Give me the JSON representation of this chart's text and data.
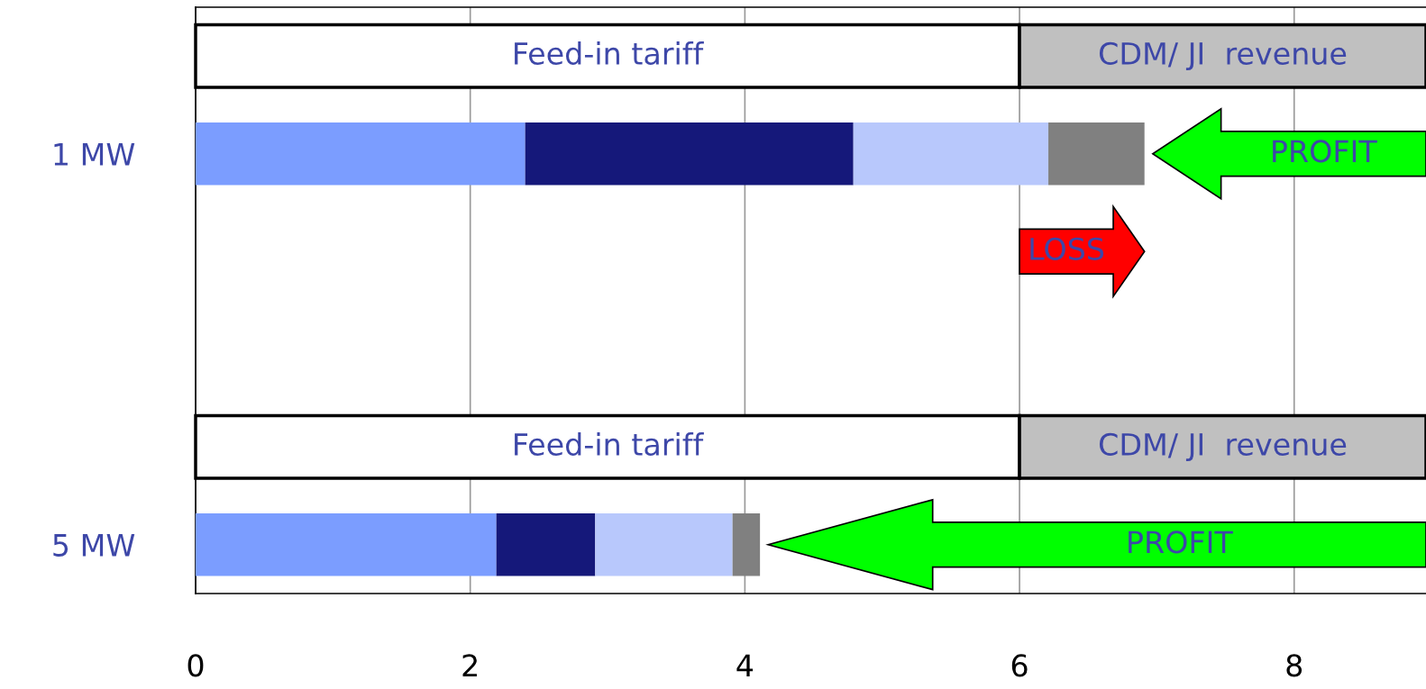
{
  "chart_data": {
    "type": "bar",
    "orientation": "horizontal",
    "stacked": true,
    "categories": [
      null,
      "1 MW",
      null,
      null,
      null,
      "5 MW"
    ],
    "series": [
      {
        "name": "Feed-in tariff",
        "color": "#ffffff",
        "values": [
          6,
          null,
          null,
          null,
          6,
          null
        ]
      },
      {
        "name": "CDM/ JI  revenue",
        "color": "#c0c0c0",
        "values": [
          2.96,
          null,
          null,
          null,
          2.96,
          null
        ]
      },
      {
        "color": "#7b9dff",
        "values": [
          null,
          2.4,
          null,
          null,
          null,
          2.19
        ]
      },
      {
        "color": "#15187a",
        "values": [
          null,
          2.39,
          null,
          null,
          null,
          0.72
        ]
      },
      {
        "color": "#b8c8fc",
        "values": [
          null,
          1.42,
          null,
          null,
          null,
          1.0
        ]
      },
      {
        "color": "#808080",
        "values": [
          null,
          0.7,
          null,
          null,
          null,
          0.2
        ]
      }
    ],
    "xlim": [
      0,
      8.96
    ],
    "xticks": [
      0,
      2,
      4,
      6,
      8
    ],
    "grid": "x",
    "annotations": [
      "PROFIT",
      "LOSS",
      "PROFIT"
    ]
  }
}
